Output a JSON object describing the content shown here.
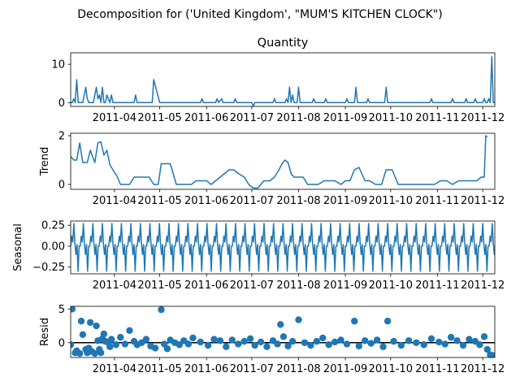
{
  "suptitle": "Decomposition for ('United Kingdom', \"MUM'S KITCHEN CLOCK\")",
  "colors": {
    "line": "#1f77b4",
    "axis": "#000000",
    "background": "#ffffff"
  },
  "x_axis": {
    "range": [
      "2011-03-03",
      "2011-12-09"
    ],
    "ticks": [
      {
        "date": "2011-04-01",
        "label": "2011-04"
      },
      {
        "date": "2011-05-01",
        "label": "2011-05"
      },
      {
        "date": "2011-06-01",
        "label": "2011-06"
      },
      {
        "date": "2011-07-01",
        "label": "2011-07"
      },
      {
        "date": "2011-08-01",
        "label": "2011-08"
      },
      {
        "date": "2011-09-01",
        "label": "2011-09"
      },
      {
        "date": "2011-10-01",
        "label": "2011-10"
      },
      {
        "date": "2011-11-01",
        "label": "2011-11"
      },
      {
        "date": "2011-12-01",
        "label": "2011-12"
      }
    ]
  },
  "chart_data": [
    {
      "type": "line",
      "title": "Quantity",
      "ylabel": "",
      "ylim": [
        -1,
        13
      ],
      "yticks": [
        {
          "v": 0,
          "label": "0"
        },
        {
          "v": 10,
          "label": "10"
        }
      ],
      "x": [
        "2011-03-03",
        "2011-03-04",
        "2011-03-05",
        "2011-03-06",
        "2011-03-07",
        "2011-03-08",
        "2011-03-09",
        "2011-03-10",
        "2011-03-11",
        "2011-03-13",
        "2011-03-14",
        "2011-03-15",
        "2011-03-16",
        "2011-03-17",
        "2011-03-18",
        "2011-03-20",
        "2011-03-21",
        "2011-03-22",
        "2011-03-23",
        "2011-03-24",
        "2011-03-25",
        "2011-03-26",
        "2011-03-27",
        "2011-03-28",
        "2011-03-29",
        "2011-03-30",
        "2011-03-31",
        "2011-04-05",
        "2011-04-08",
        "2011-04-10",
        "2011-04-14",
        "2011-04-15",
        "2011-04-16",
        "2011-04-25",
        "2011-04-26",
        "2011-04-27",
        "2011-05-01",
        "2011-05-02",
        "2011-05-03",
        "2011-05-04",
        "2011-05-05",
        "2011-05-28",
        "2011-05-29",
        "2011-05-30",
        "2011-06-07",
        "2011-06-08",
        "2011-06-09",
        "2011-06-11",
        "2011-06-12",
        "2011-06-13",
        "2011-06-19",
        "2011-06-20",
        "2011-06-21",
        "2011-07-01",
        "2011-07-02",
        "2011-07-03",
        "2011-07-04",
        "2011-07-15",
        "2011-07-16",
        "2011-07-17",
        "2011-07-18",
        "2011-07-19",
        "2011-07-20",
        "2011-07-21",
        "2011-07-22",
        "2011-07-23",
        "2011-07-24",
        "2011-07-25",
        "2011-07-26",
        "2011-07-27",
        "2011-07-28",
        "2011-07-29",
        "2011-07-30",
        "2011-07-31",
        "2011-08-01",
        "2011-08-02",
        "2011-08-10",
        "2011-08-11",
        "2011-08-12",
        "2011-08-18",
        "2011-08-19",
        "2011-08-20",
        "2011-09-01",
        "2011-09-02",
        "2011-09-03",
        "2011-09-07",
        "2011-09-08",
        "2011-09-09",
        "2011-09-15",
        "2011-09-16",
        "2011-09-17",
        "2011-09-27",
        "2011-09-28",
        "2011-09-29",
        "2011-10-27",
        "2011-10-28",
        "2011-10-29",
        "2011-11-10",
        "2011-11-11",
        "2011-11-12",
        "2011-11-19",
        "2011-11-20",
        "2011-11-21",
        "2011-11-25",
        "2011-11-26",
        "2011-11-27",
        "2011-12-01",
        "2011-12-02",
        "2011-12-03",
        "2011-12-04",
        "2011-12-05",
        "2011-12-06",
        "2011-12-07",
        "2011-12-08",
        "2011-12-09"
      ],
      "series": [
        {
          "values": [
            0,
            0,
            1,
            0,
            6,
            0,
            0,
            0,
            0,
            4,
            1,
            0,
            0,
            0,
            0,
            4,
            1,
            2,
            0,
            4,
            0,
            0,
            2,
            1,
            0,
            2,
            0,
            0,
            0,
            0,
            0,
            2,
            0,
            0,
            0,
            6,
            0,
            0,
            0,
            0,
            0,
            0,
            1,
            0,
            0,
            1,
            0,
            1,
            0,
            0,
            0,
            1,
            0,
            0,
            -1,
            0,
            0,
            0,
            1,
            0,
            0,
            0,
            0,
            0,
            0,
            0,
            1,
            0,
            4,
            0,
            2,
            0,
            0,
            0,
            4,
            0,
            0,
            1,
            0,
            0,
            1,
            0,
            0,
            1,
            0,
            0,
            4,
            0,
            0,
            1,
            0,
            0,
            4,
            0,
            0,
            1,
            0,
            0,
            1,
            0,
            0,
            1,
            0,
            0,
            1,
            0,
            0,
            1,
            0,
            0,
            1,
            0,
            12,
            0,
            0
          ]
        }
      ]
    },
    {
      "type": "line",
      "title": "",
      "ylabel": "Trend",
      "ylim": [
        -0.2,
        2.1
      ],
      "yticks": [
        {
          "v": 0,
          "label": "0"
        },
        {
          "v": 2,
          "label": "2"
        }
      ],
      "x": [
        "2011-03-03",
        "2011-03-05",
        "2011-03-07",
        "2011-03-09",
        "2011-03-11",
        "2011-03-14",
        "2011-03-16",
        "2011-03-19",
        "2011-03-21",
        "2011-03-23",
        "2011-03-25",
        "2011-03-27",
        "2011-03-29",
        "2011-03-31",
        "2011-04-03",
        "2011-04-05",
        "2011-04-08",
        "2011-04-11",
        "2011-04-14",
        "2011-04-21",
        "2011-04-24",
        "2011-04-27",
        "2011-04-30",
        "2011-05-02",
        "2011-05-05",
        "2011-05-08",
        "2011-05-12",
        "2011-05-15",
        "2011-05-19",
        "2011-05-22",
        "2011-05-25",
        "2011-05-28",
        "2011-06-01",
        "2011-06-04",
        "2011-06-07",
        "2011-06-10",
        "2011-06-13",
        "2011-06-16",
        "2011-06-19",
        "2011-06-22",
        "2011-06-26",
        "2011-06-29",
        "2011-07-02",
        "2011-07-05",
        "2011-07-09",
        "2011-07-13",
        "2011-07-16",
        "2011-07-19",
        "2011-07-21",
        "2011-07-23",
        "2011-07-25",
        "2011-07-27",
        "2011-07-29",
        "2011-08-01",
        "2011-08-04",
        "2011-08-07",
        "2011-08-11",
        "2011-08-14",
        "2011-08-18",
        "2011-08-22",
        "2011-08-25",
        "2011-08-29",
        "2011-09-01",
        "2011-09-04",
        "2011-09-07",
        "2011-09-10",
        "2011-09-14",
        "2011-09-17",
        "2011-09-21",
        "2011-09-25",
        "2011-09-28",
        "2011-10-02",
        "2011-10-06",
        "2011-10-10",
        "2011-10-14",
        "2011-10-18",
        "2011-10-22",
        "2011-10-26",
        "2011-10-30",
        "2011-11-03",
        "2011-11-07",
        "2011-11-11",
        "2011-11-15",
        "2011-11-19",
        "2011-11-23",
        "2011-11-27",
        "2011-11-30",
        "2011-12-02",
        "2011-12-03",
        "2011-12-04"
      ],
      "series": [
        {
          "values": [
            1.15,
            1.0,
            1.0,
            1.7,
            0.9,
            0.9,
            1.4,
            0.9,
            1.7,
            1.75,
            1.2,
            1.4,
            0.8,
            0.6,
            0.3,
            0.0,
            0.0,
            0.0,
            0.3,
            0.3,
            0.3,
            0.0,
            0.0,
            0.85,
            0.85,
            0.85,
            0.0,
            0.0,
            0.0,
            0.0,
            0.15,
            0.15,
            0.15,
            0.0,
            0.15,
            0.3,
            0.45,
            0.6,
            0.6,
            0.45,
            0.3,
            0.0,
            -0.15,
            -0.15,
            0.15,
            0.15,
            0.3,
            0.6,
            0.85,
            1.0,
            0.9,
            0.45,
            0.3,
            0.3,
            0.3,
            0.0,
            0.0,
            0.0,
            0.15,
            0.15,
            0.15,
            0.0,
            0.15,
            0.15,
            0.6,
            0.7,
            0.15,
            0.15,
            0.0,
            0.0,
            0.6,
            0.6,
            0.0,
            0.0,
            0.0,
            0.0,
            0.0,
            0.0,
            0.0,
            0.15,
            0.15,
            0.0,
            0.15,
            0.15,
            0.15,
            0.15,
            0.3,
            0.3,
            2.0,
            1.95
          ]
        }
      ]
    },
    {
      "type": "line",
      "title": "",
      "ylabel": "Seasonal",
      "ylim": [
        -0.33,
        0.3
      ],
      "yticks": [
        {
          "v": 0.25,
          "label": "0.25"
        },
        {
          "v": 0,
          "label": "0.00"
        },
        {
          "v": -0.25,
          "label": "−0.25"
        }
      ],
      "period_days": 6.3,
      "pattern": [
        0.0,
        0.12,
        0.05,
        0.27,
        0.03,
        -0.1,
        0.02,
        -0.3,
        0.0
      ],
      "note_generated": false
    },
    {
      "type": "scatter",
      "title": "",
      "ylabel": "Resid",
      "ylim": [
        -2.2,
        5.4
      ],
      "yticks": [
        {
          "v": 0,
          "label": "0"
        },
        {
          "v": 5,
          "label": "5"
        }
      ],
      "x": [
        "2011-03-03",
        "2011-03-04",
        "2011-03-06",
        "2011-03-07",
        "2011-03-09",
        "2011-03-10",
        "2011-03-11",
        "2011-03-13",
        "2011-03-14",
        "2011-03-15",
        "2011-03-16",
        "2011-03-17",
        "2011-03-19",
        "2011-03-20",
        "2011-03-21",
        "2011-03-22",
        "2011-03-23",
        "2011-03-24",
        "2011-03-25",
        "2011-03-26",
        "2011-03-28",
        "2011-03-29",
        "2011-03-30",
        "2011-04-02",
        "2011-04-05",
        "2011-04-08",
        "2011-04-11",
        "2011-04-14",
        "2011-04-16",
        "2011-04-19",
        "2011-04-22",
        "2011-04-25",
        "2011-04-28",
        "2011-05-02",
        "2011-05-04",
        "2011-05-06",
        "2011-05-08",
        "2011-05-11",
        "2011-05-14",
        "2011-05-17",
        "2011-05-20",
        "2011-05-23",
        "2011-05-28",
        "2011-06-02",
        "2011-06-06",
        "2011-06-10",
        "2011-06-14",
        "2011-06-18",
        "2011-06-22",
        "2011-06-26",
        "2011-06-30",
        "2011-07-03",
        "2011-07-07",
        "2011-07-11",
        "2011-07-15",
        "2011-07-18",
        "2011-07-20",
        "2011-07-22",
        "2011-07-25",
        "2011-07-28",
        "2011-08-01",
        "2011-08-05",
        "2011-08-09",
        "2011-08-13",
        "2011-08-17",
        "2011-08-21",
        "2011-08-25",
        "2011-08-29",
        "2011-09-02",
        "2011-09-07",
        "2011-09-10",
        "2011-09-14",
        "2011-09-18",
        "2011-09-22",
        "2011-09-26",
        "2011-09-29",
        "2011-10-03",
        "2011-10-08",
        "2011-10-13",
        "2011-10-18",
        "2011-10-23",
        "2011-10-28",
        "2011-11-02",
        "2011-11-06",
        "2011-11-10",
        "2011-11-14",
        "2011-11-18",
        "2011-11-22",
        "2011-11-26",
        "2011-11-29",
        "2011-12-02",
        "2011-12-04",
        "2011-12-06",
        "2011-12-08"
      ],
      "series": [
        {
          "values": [
            -0.3,
            5.0,
            -1.5,
            -1.2,
            -1.6,
            3.2,
            1.2,
            -1.0,
            -1.5,
            -0.8,
            3.0,
            -1.3,
            -1.6,
            2.5,
            0.3,
            -1.0,
            -1.5,
            0.6,
            1.3,
            0.2,
            0.0,
            -0.6,
            0.5,
            -0.3,
            0.8,
            -0.2,
            1.8,
            0.2,
            -0.3,
            0.0,
            0.5,
            -0.5,
            -0.8,
            4.9,
            -0.2,
            -0.9,
            0.4,
            0.0,
            -0.3,
            0.3,
            -0.2,
            0.7,
            0.1,
            -0.4,
            0.5,
            0.3,
            -0.6,
            0.4,
            -0.2,
            0.2,
            0.6,
            -0.4,
            0.1,
            -0.6,
            0.3,
            -0.2,
            2.7,
            0.9,
            -0.5,
            0.2,
            3.4,
            0.0,
            -0.4,
            0.2,
            0.7,
            -0.3,
            0.1,
            0.4,
            -0.2,
            3.2,
            -0.5,
            0.3,
            -0.1,
            0.4,
            -0.6,
            3.2,
            0.2,
            -0.4,
            0.3,
            0.0,
            -0.3,
            0.6,
            0.1,
            -0.2,
            0.8,
            0.3,
            -0.4,
            0.5,
            0.2,
            -0.3,
            0.9,
            -1.0,
            -1.8,
            -1.9
          ]
        }
      ]
    }
  ]
}
